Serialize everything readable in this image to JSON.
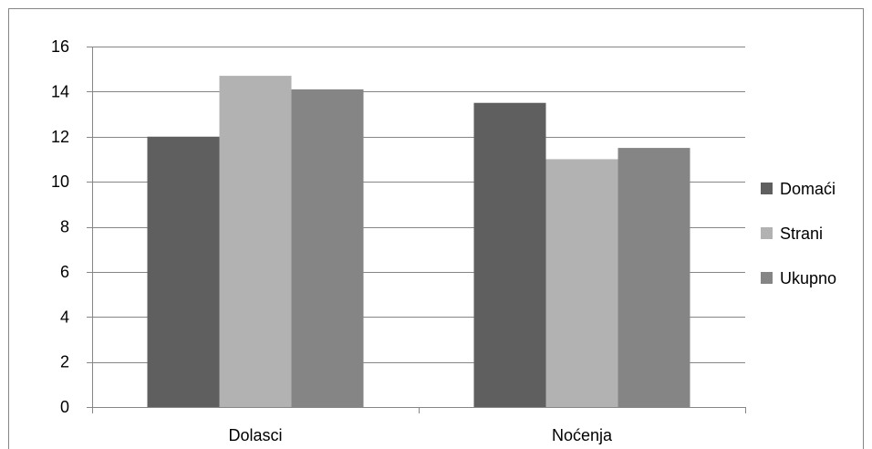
{
  "chart_data": {
    "type": "bar",
    "categories": [
      "Dolasci",
      "Noćenja"
    ],
    "series": [
      {
        "name": "Domaći",
        "values": [
          12.0,
          13.5
        ],
        "color": "#5f5f5f"
      },
      {
        "name": "Strani",
        "values": [
          14.7,
          11.0
        ],
        "color": "#b2b2b2"
      },
      {
        "name": "Ukupno",
        "values": [
          14.1,
          11.5
        ],
        "color": "#858585"
      }
    ],
    "yticks": [
      0,
      2,
      4,
      6,
      8,
      10,
      12,
      14,
      16
    ],
    "ylim": [
      0,
      16
    ],
    "grid": true,
    "legend_position": "right",
    "frame_color": "#868686",
    "grid_color": "#868686"
  }
}
